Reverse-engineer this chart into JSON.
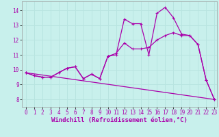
{
  "xlabel": "Windchill (Refroidissement éolien,°C)",
  "ylabel": "",
  "background_color": "#c8f0ec",
  "line_color": "#aa00aa",
  "grid_color": "#b8e4e0",
  "xlim": [
    -0.5,
    23.3
  ],
  "ylim": [
    7.5,
    14.6
  ],
  "xticks": [
    0,
    1,
    2,
    3,
    4,
    5,
    6,
    7,
    8,
    9,
    10,
    11,
    12,
    13,
    14,
    15,
    16,
    17,
    18,
    19,
    20,
    21,
    22,
    23
  ],
  "yticks": [
    8,
    9,
    10,
    11,
    12,
    13,
    14
  ],
  "line1_x": [
    0,
    1,
    2,
    3,
    4,
    5,
    6,
    7,
    8,
    9,
    10,
    11,
    12,
    13,
    14,
    15,
    16,
    17,
    18,
    19,
    20,
    21,
    22,
    23
  ],
  "line1_y": [
    9.8,
    9.6,
    9.5,
    9.5,
    9.8,
    10.1,
    10.2,
    9.4,
    9.7,
    9.4,
    10.9,
    11.0,
    13.4,
    13.1,
    13.1,
    11.0,
    13.8,
    14.2,
    13.5,
    12.4,
    12.3,
    11.7,
    9.3,
    8.0
  ],
  "line2_x": [
    0,
    1,
    2,
    3,
    4,
    5,
    6,
    7,
    8,
    9,
    10,
    11,
    12,
    13,
    14,
    15,
    16,
    17,
    18,
    19,
    20,
    21,
    22,
    23
  ],
  "line2_y": [
    9.8,
    9.6,
    9.5,
    9.5,
    9.8,
    10.1,
    10.2,
    9.4,
    9.7,
    9.4,
    10.9,
    11.1,
    11.8,
    11.4,
    11.4,
    11.5,
    12.0,
    12.3,
    12.5,
    12.3,
    12.3,
    11.7,
    9.3,
    8.0
  ],
  "line3_x": [
    0,
    23
  ],
  "line3_y": [
    9.8,
    8.0
  ],
  "tick_fontsize": 5.5,
  "xlabel_fontsize": 6.5
}
